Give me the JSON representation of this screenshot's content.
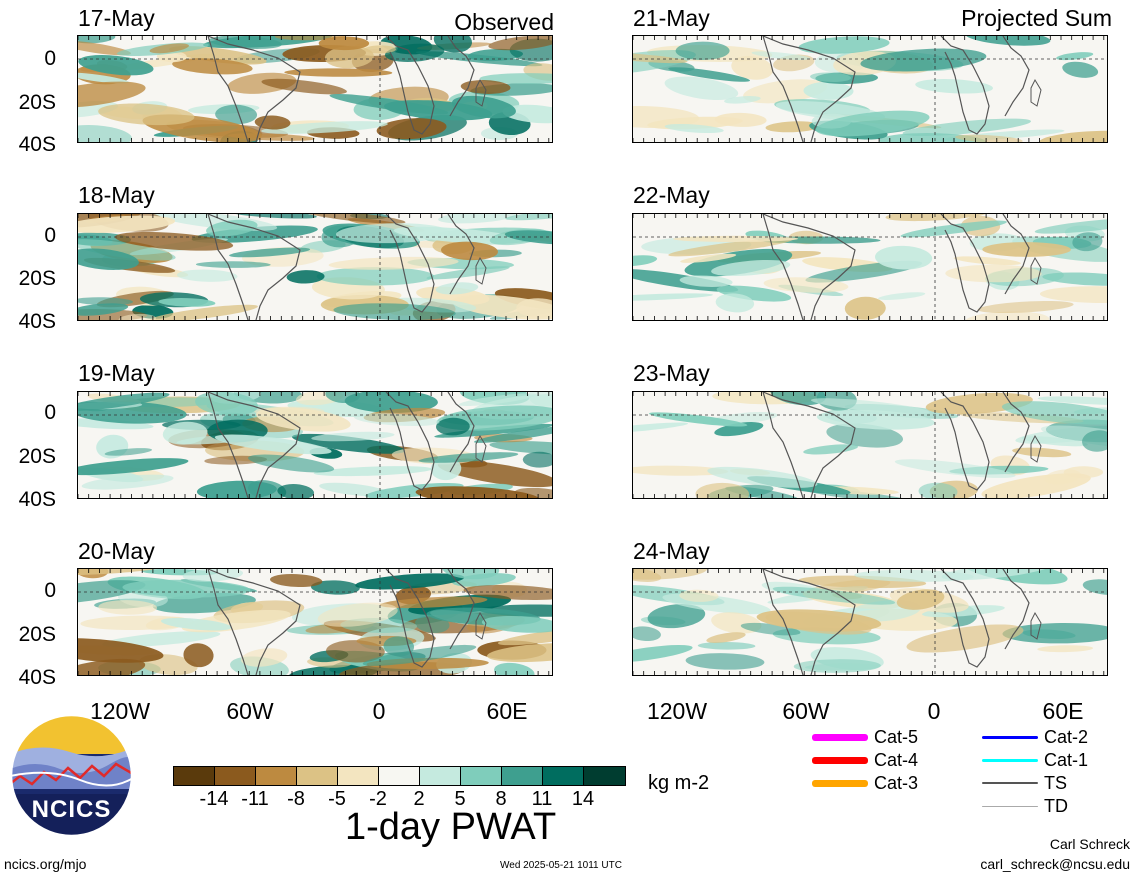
{
  "column_titles": {
    "left": "Observed",
    "right": "Projected Sum"
  },
  "panels_left": [
    {
      "date": "17-May"
    },
    {
      "date": "18-May"
    },
    {
      "date": "19-May"
    },
    {
      "date": "20-May"
    }
  ],
  "panels_right": [
    {
      "date": "21-May"
    },
    {
      "date": "22-May"
    },
    {
      "date": "23-May"
    },
    {
      "date": "24-May"
    }
  ],
  "lat_labels": [
    "0",
    "20S",
    "40S"
  ],
  "lon_labels": [
    "120W",
    "60W",
    "0",
    "60E"
  ],
  "colorbar": {
    "colors": [
      "#5a3a0c",
      "#8b5a1e",
      "#bd8a40",
      "#dcc285",
      "#f3e5c0",
      "#f7f7f2",
      "#c5eadf",
      "#7fcdbb",
      "#3e9f8f",
      "#006d5f",
      "#003d30"
    ],
    "labels": [
      "-14",
      "-11",
      "-8",
      "-5",
      "-2",
      "2",
      "5",
      "8",
      "11",
      "14"
    ],
    "units": "kg m-2"
  },
  "variable_title": "1-day PWAT",
  "legend": [
    {
      "label": "Cat-5",
      "color": "#ff00ff"
    },
    {
      "label": "Cat-4",
      "color": "#ff0000"
    },
    {
      "label": "Cat-3",
      "color": "#ffa500"
    },
    {
      "label": "Cat-2",
      "color": "#0000ff"
    },
    {
      "label": "Cat-1",
      "color": "#00ffff"
    },
    {
      "label": "TS",
      "color": "#555555"
    },
    {
      "label": "TD",
      "color": "#aaaaaa"
    }
  ],
  "logo_text": "NCICS",
  "footer": {
    "left": "ncics.org/mjo",
    "center": "Wed 2025-05-21 1011 UTC",
    "author": "Carl Schreck",
    "email": "carl_schreck@ncsu.edu"
  }
}
